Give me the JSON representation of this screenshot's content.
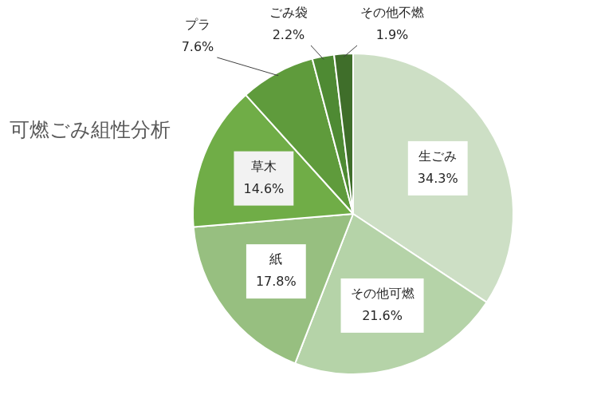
{
  "chart_data": {
    "type": "pie",
    "title": "可燃ごみ組性分析",
    "categories": [
      "生ごみ",
      "その他可燃",
      "紙",
      "草木",
      "プラ",
      "ごみ袋",
      "その他不燃"
    ],
    "values": [
      34.3,
      21.6,
      17.8,
      14.6,
      7.6,
      2.2,
      1.9
    ],
    "value_labels": [
      "34.3%",
      "21.6%",
      "17.8%",
      "14.6%",
      "7.6%",
      "2.2%",
      "1.9%"
    ],
    "colors": [
      "#cddfc5",
      "#b5d3a8",
      "#97bf80",
      "#70ad47",
      "#5f9b3c",
      "#4e8a33",
      "#3f6e2a"
    ],
    "data_labels": true
  }
}
